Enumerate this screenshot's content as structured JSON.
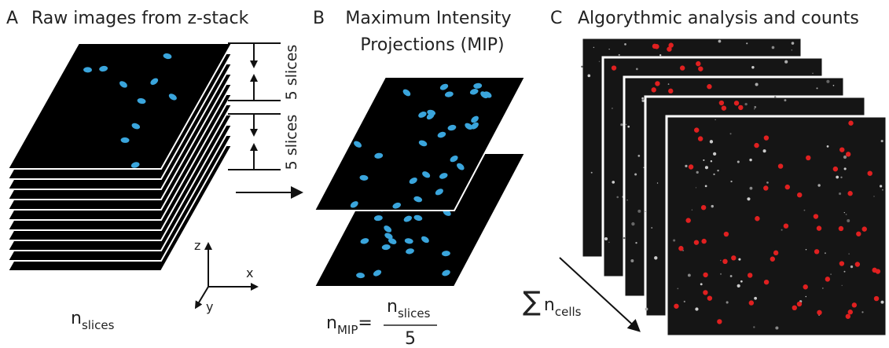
{
  "panels": [
    {
      "letter": "A",
      "title": "Raw images from z-stack"
    },
    {
      "letter": "B",
      "title": [
        "Maximum Intensity",
        "Projections (MIP)"
      ]
    },
    {
      "letter": "C",
      "title": "Algorythmic analysis and counts"
    }
  ],
  "slice_groups": [
    "5 slices",
    "5 slices"
  ],
  "axes": {
    "z": "z",
    "x": "x",
    "y": "y"
  },
  "stack_count": {
    "symbol": "n",
    "subscript": "slices"
  },
  "mip_formula": {
    "symbol": "n",
    "subscript": "MIP",
    "equals": "=",
    "numerator_symbol": "n",
    "numerator_subscript": "slices",
    "denominator": 5
  },
  "cell_sum": {
    "sigma": "∑",
    "symbol": "n",
    "subscript": "cells"
  }
}
